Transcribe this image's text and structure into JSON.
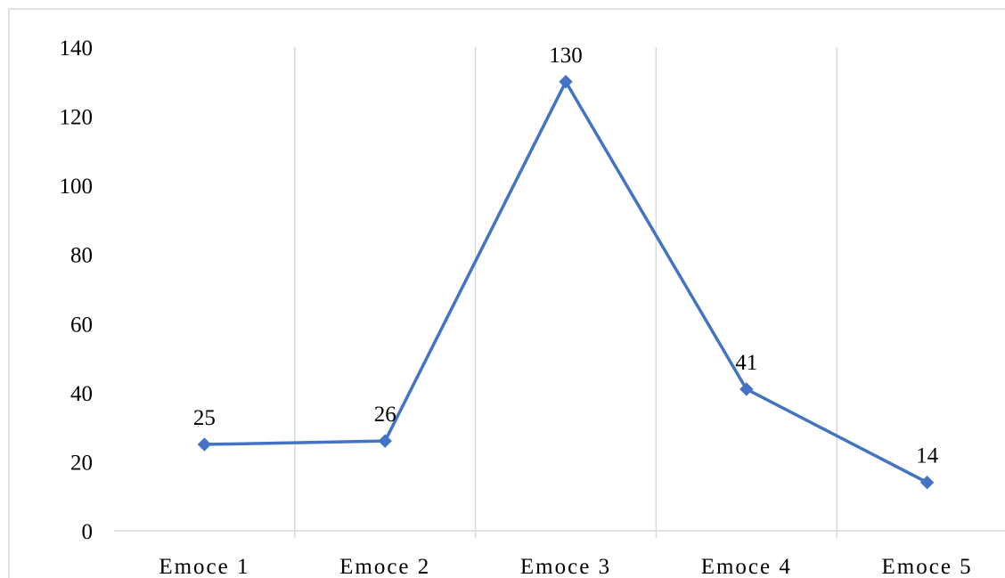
{
  "chart_data": {
    "type": "line",
    "title": "",
    "xlabel": "",
    "ylabel": "",
    "categories": [
      "Emoce 1",
      "Emoce 2",
      "Emoce 3",
      "Emoce 4",
      "Emoce 5"
    ],
    "series": [
      {
        "values": [
          25,
          26,
          130,
          41,
          14
        ],
        "color": "#4472C4",
        "marker": "diamond"
      }
    ],
    "data_labels": [
      "25",
      "26",
      "130",
      "41",
      "14"
    ],
    "ylim": [
      0,
      140
    ],
    "yticks": [
      "0",
      "20",
      "40",
      "60",
      "80",
      "100",
      "120",
      "140"
    ],
    "grid": "vertical category separators",
    "legend": "none"
  }
}
